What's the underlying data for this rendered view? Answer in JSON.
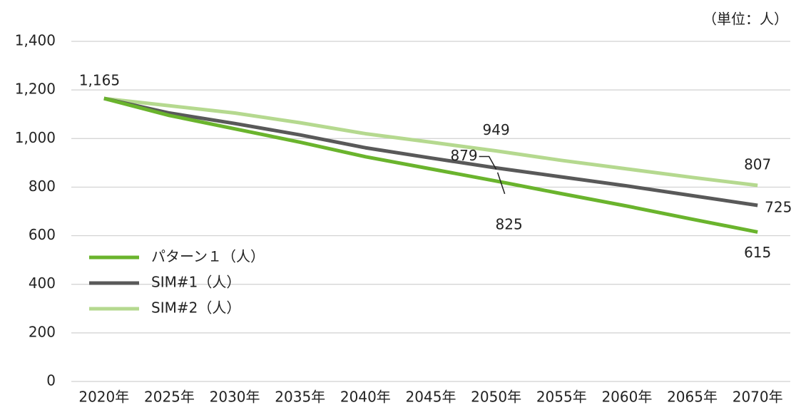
{
  "chart_data": {
    "type": "line",
    "annotation": "（単位：人）",
    "categories": [
      "2020年",
      "2025年",
      "2030年",
      "2035年",
      "2040年",
      "2045年",
      "2050年",
      "2055年",
      "2060年",
      "2065年",
      "2070年"
    ],
    "series": [
      {
        "name": "パターン１（人）",
        "color": "#6ab42d",
        "values": [
          1165,
          1095,
          1040,
          985,
          925,
          875,
          825,
          773,
          722,
          668,
          615
        ],
        "value_labels": [
          "1,165",
          null,
          null,
          null,
          null,
          null,
          "825",
          null,
          null,
          null,
          "615"
        ]
      },
      {
        "name": "SIM#1（人）",
        "color": "#595959",
        "values": [
          1165,
          1105,
          1062,
          1015,
          962,
          920,
          879,
          842,
          805,
          765,
          725
        ],
        "value_labels": [
          null,
          null,
          null,
          null,
          null,
          null,
          "879",
          null,
          null,
          null,
          "725"
        ]
      },
      {
        "name": "SIM#2（人）",
        "color": "#b5d98f",
        "values": [
          1165,
          1135,
          1105,
          1065,
          1020,
          985,
          949,
          910,
          875,
          840,
          807
        ],
        "value_labels": [
          null,
          null,
          null,
          null,
          null,
          null,
          "949",
          null,
          null,
          null,
          "807"
        ]
      }
    ],
    "ylim": [
      0,
      1400
    ],
    "yticks": [
      0,
      200,
      400,
      600,
      800,
      {
        "value": 1000,
        "label": "1,000"
      },
      {
        "value": 1200,
        "label": "1,200"
      },
      {
        "value": 1400,
        "label": "1,400"
      }
    ],
    "grid": true,
    "legend": "left"
  }
}
